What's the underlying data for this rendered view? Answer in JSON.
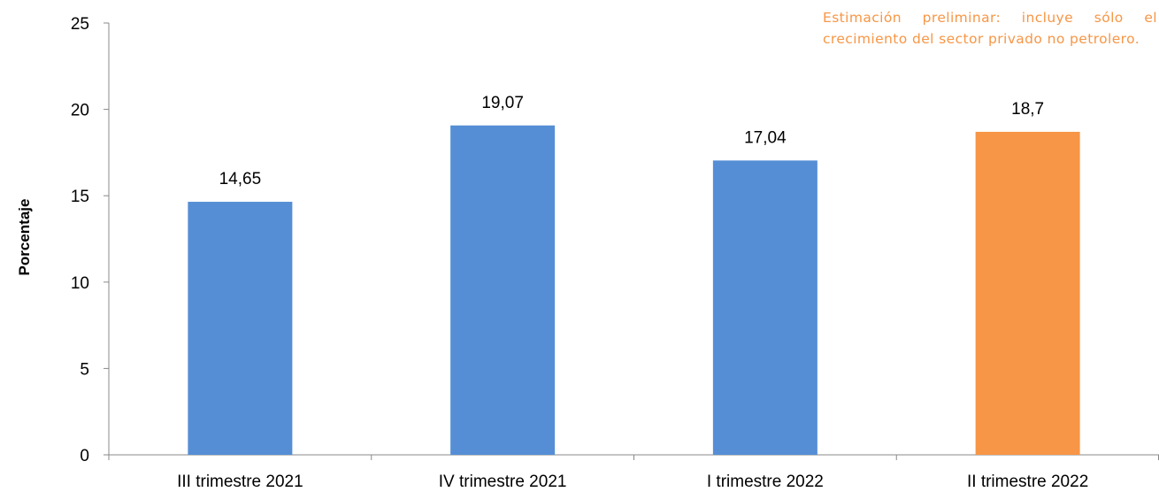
{
  "chart_data": {
    "type": "bar",
    "categories": [
      "III trimestre 2021",
      "IV trimestre 2021",
      "I trimestre 2022",
      "II trimestre 2022"
    ],
    "values": [
      14.65,
      19.07,
      17.04,
      18.7
    ],
    "data_labels": [
      "14,65",
      "19,07",
      "17,04",
      "18,7"
    ],
    "bar_colors": [
      "#558ED5",
      "#558ED5",
      "#558ED5",
      "#F79646"
    ],
    "title": "",
    "xlabel": "",
    "ylabel": "Porcentaje",
    "ylim": [
      0,
      25
    ],
    "yticks": [
      0,
      5,
      10,
      15,
      20,
      25
    ],
    "grid": false,
    "annotation": "Estimación preliminar: incluye sólo el crecimiento del sector privado no petrolero.",
    "annotation_color": "#F79646"
  }
}
